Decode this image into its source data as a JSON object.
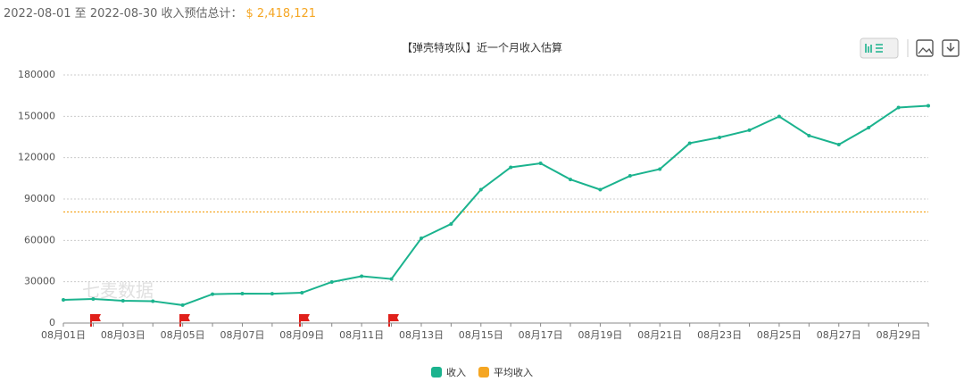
{
  "header": {
    "date_range": "2022-08-01 至 2022-08-30 收入预估总计：",
    "total": "$ 2,418,121"
  },
  "chart_data": {
    "type": "line",
    "title": "【弹壳特攻队】近一个月收入估算",
    "watermark": "七麦数据",
    "categories": [
      "08月01日",
      null,
      "08月03日",
      null,
      "08月05日",
      null,
      "08月07日",
      null,
      "08月09日",
      null,
      "08月11日",
      null,
      "08月13日",
      null,
      "08月15日",
      null,
      "08月17日",
      null,
      "08月19日",
      null,
      "08月21日",
      null,
      "08月23日",
      null,
      "08月25日",
      null,
      "08月27日",
      null,
      "08月29日",
      null
    ],
    "series": [
      {
        "name": "收入",
        "color": "#1bb38e",
        "values": [
          16800,
          17500,
          16200,
          15900,
          13000,
          21000,
          21400,
          21300,
          22000,
          29800,
          34000,
          32000,
          61500,
          71900,
          96800,
          113000,
          115900,
          104200,
          96800,
          106800,
          111700,
          130500,
          134700,
          139900,
          149900,
          136000,
          129500,
          141800,
          156400,
          157700
        ]
      }
    ],
    "reference_line": {
      "name": "平均收入",
      "color": "#f5a623",
      "value": 80604
    },
    "ylim": [
      0,
      180000
    ],
    "yticks": [
      0,
      30000,
      60000,
      90000,
      120000,
      150000,
      180000
    ],
    "grid": true
  }
}
